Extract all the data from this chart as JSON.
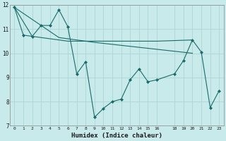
{
  "xlabel": "Humidex (Indice chaleur)",
  "bg_color": "#c8eaea",
  "grid_color": "#b0d8d8",
  "line_color": "#1a6b6b",
  "xlim": [
    -0.5,
    23.5
  ],
  "ylim": [
    7,
    12
  ],
  "xticks": [
    0,
    1,
    2,
    3,
    4,
    5,
    6,
    7,
    8,
    9,
    10,
    11,
    12,
    13,
    14,
    15,
    16,
    18,
    19,
    20,
    21,
    22,
    23
  ],
  "yticks": [
    7,
    8,
    9,
    10,
    11,
    12
  ],
  "series1": [
    [
      0,
      11.9
    ],
    [
      1,
      10.75
    ],
    [
      2,
      10.7
    ],
    [
      3,
      11.15
    ],
    [
      4,
      11.15
    ],
    [
      5,
      11.8
    ],
    [
      6,
      11.1
    ],
    [
      7,
      9.15
    ],
    [
      8,
      9.65
    ],
    [
      9,
      7.35
    ],
    [
      10,
      7.72
    ],
    [
      11,
      8.0
    ],
    [
      12,
      8.1
    ],
    [
      13,
      8.9
    ],
    [
      14,
      9.35
    ],
    [
      15,
      8.82
    ],
    [
      16,
      8.9
    ],
    [
      18,
      9.15
    ],
    [
      19,
      9.7
    ],
    [
      20,
      10.55
    ],
    [
      21,
      10.05
    ],
    [
      22,
      7.75
    ],
    [
      23,
      8.45
    ]
  ],
  "series2": [
    [
      0,
      11.9
    ],
    [
      2,
      10.7
    ],
    [
      6,
      10.5
    ],
    [
      16,
      10.5
    ],
    [
      20,
      10.55
    ]
  ],
  "series3": [
    [
      0,
      11.9
    ],
    [
      5,
      10.65
    ],
    [
      9,
      10.45
    ],
    [
      20,
      10.0
    ]
  ]
}
